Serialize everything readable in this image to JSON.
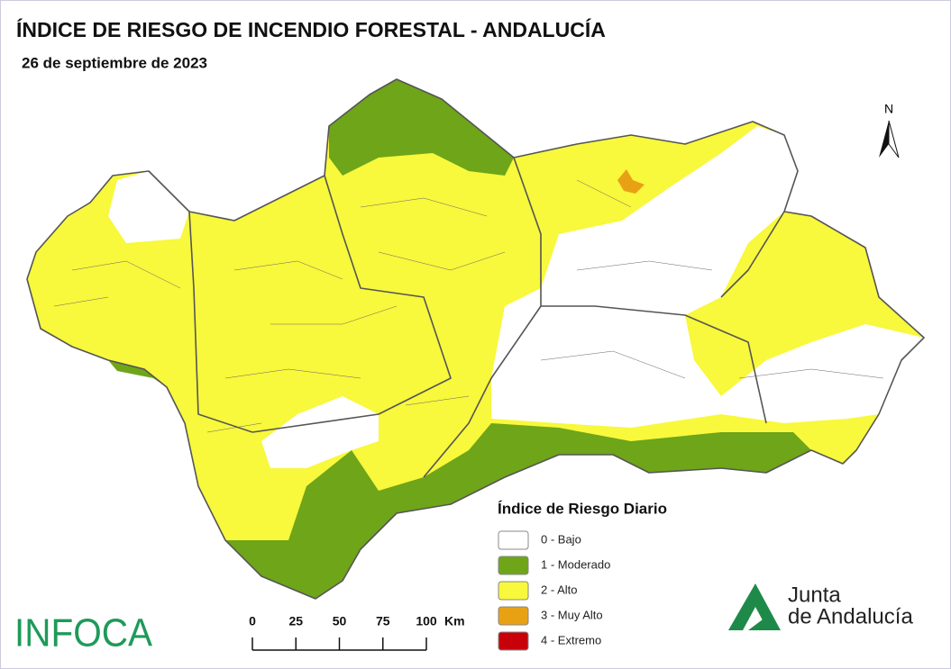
{
  "title": "ÍNDICE DE RIESGO DE INCENDIO FORESTAL - ANDALUCÍA",
  "date": "26 de septiembre de 2023",
  "north": "N",
  "legend": {
    "title": "Índice de Riesgo Diario",
    "items": [
      {
        "label": "0 - Bajo",
        "color": "#ffffff"
      },
      {
        "label": "1 - Moderado",
        "color": "#6ea519"
      },
      {
        "label": "2 - Alto",
        "color": "#f8f83c"
      },
      {
        "label": "3 - Muy Alto",
        "color": "#e9a114"
      },
      {
        "label": "4 - Extremo",
        "color": "#c8000a"
      }
    ]
  },
  "scale": {
    "ticks": [
      0,
      25,
      50,
      75,
      100
    ],
    "unit": "Km"
  },
  "logos": {
    "infoca": "INFOCA",
    "junta": [
      "Junta",
      "de Andalucía"
    ]
  }
}
